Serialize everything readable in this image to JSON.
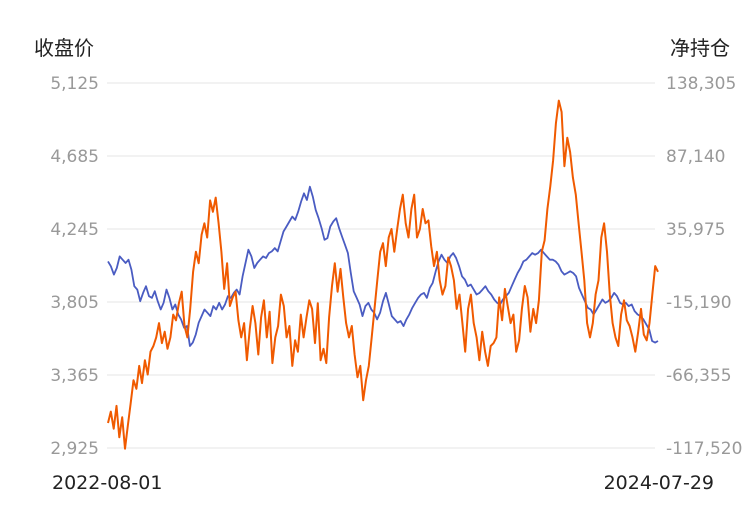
{
  "chart_data": {
    "type": "line",
    "left_axis": {
      "title": "收盘价",
      "ticks": [
        "5,125",
        "4,685",
        "4,245",
        "3,805",
        "3,365",
        "2,925"
      ],
      "range": [
        2925,
        5125
      ]
    },
    "right_axis": {
      "title": "净持仓",
      "ticks": [
        "138,305",
        "87,140",
        "35,975",
        "-15,190",
        "-66,355",
        "-117,520"
      ],
      "range": [
        -117520,
        138305
      ]
    },
    "x_labels": {
      "start": "2022-08-01",
      "end": "2024-07-29"
    },
    "grid": true,
    "series": [
      {
        "key": "close",
        "axis": "left",
        "color": "#4a5cc2",
        "values": [
          4050,
          4020,
          3970,
          4010,
          4080,
          4060,
          4040,
          4060,
          4000,
          3900,
          3880,
          3810,
          3860,
          3900,
          3840,
          3830,
          3870,
          3810,
          3760,
          3800,
          3880,
          3830,
          3760,
          3790,
          3730,
          3700,
          3650,
          3660,
          3540,
          3560,
          3610,
          3680,
          3720,
          3760,
          3740,
          3720,
          3780,
          3760,
          3800,
          3760,
          3790,
          3840,
          3830,
          3860,
          3880,
          3850,
          3960,
          4040,
          4120,
          4080,
          4010,
          4040,
          4060,
          4080,
          4070,
          4100,
          4110,
          4130,
          4110,
          4170,
          4230,
          4260,
          4290,
          4320,
          4300,
          4350,
          4410,
          4460,
          4420,
          4500,
          4440,
          4360,
          4310,
          4250,
          4180,
          4190,
          4260,
          4290,
          4310,
          4250,
          4200,
          4150,
          4100,
          3980,
          3870,
          3830,
          3790,
          3720,
          3780,
          3800,
          3760,
          3740,
          3700,
          3740,
          3810,
          3860,
          3790,
          3720,
          3700,
          3680,
          3690,
          3660,
          3700,
          3730,
          3770,
          3800,
          3830,
          3850,
          3860,
          3830,
          3890,
          3920,
          3990,
          4050,
          4090,
          4060,
          4040,
          4080,
          4100,
          4070,
          4020,
          3960,
          3940,
          3900,
          3910,
          3880,
          3850,
          3860,
          3880,
          3900,
          3870,
          3850,
          3820,
          3800,
          3790,
          3820,
          3840,
          3860,
          3900,
          3940,
          3980,
          4010,
          4050,
          4060,
          4080,
          4100,
          4090,
          4100,
          4120,
          4100,
          4080,
          4060,
          4060,
          4050,
          4030,
          3990,
          3970,
          3980,
          3990,
          3980,
          3960,
          3890,
          3850,
          3810,
          3770,
          3760,
          3730,
          3760,
          3790,
          3820,
          3800,
          3810,
          3830,
          3860,
          3840,
          3800,
          3790,
          3800,
          3780,
          3790,
          3750,
          3730,
          3720,
          3700,
          3670,
          3640,
          3570,
          3560,
          3570
        ]
      },
      {
        "key": "net_position",
        "axis": "right",
        "color": "#f05a00",
        "values": [
          -100000,
          -92000,
          -104000,
          -88000,
          -110000,
          -96000,
          -118000,
          -102000,
          -86000,
          -70000,
          -76000,
          -60000,
          -72000,
          -56000,
          -66000,
          -50000,
          -46000,
          -40000,
          -30000,
          -44000,
          -36000,
          -48000,
          -40000,
          -24000,
          -28000,
          -16000,
          -8000,
          -32000,
          -40000,
          -20000,
          6000,
          20000,
          12000,
          32000,
          40000,
          30000,
          56000,
          48000,
          58000,
          40000,
          20000,
          -6000,
          12000,
          -18000,
          -12000,
          -8000,
          -28000,
          -40000,
          -30000,
          -56000,
          -34000,
          -18000,
          -30000,
          -52000,
          -26000,
          -14000,
          -40000,
          -22000,
          -58000,
          -40000,
          -32000,
          -10000,
          -18000,
          -40000,
          -32000,
          -60000,
          -42000,
          -50000,
          -24000,
          -40000,
          -26000,
          -14000,
          -20000,
          -44000,
          -16000,
          -56000,
          -48000,
          -58000,
          -26000,
          -4000,
          12000,
          -8000,
          8000,
          -12000,
          -30000,
          -40000,
          -32000,
          -52000,
          -68000,
          -60000,
          -84000,
          -70000,
          -60000,
          -40000,
          -20000,
          0,
          20000,
          26000,
          10000,
          30000,
          36000,
          20000,
          36000,
          50000,
          60000,
          40000,
          30000,
          50000,
          60000,
          30000,
          36000,
          50000,
          40000,
          42000,
          24000,
          10000,
          20000,
          0,
          -10000,
          -4000,
          16000,
          10000,
          0,
          -20000,
          -10000,
          -30000,
          -50000,
          -20000,
          -10000,
          -30000,
          -40000,
          -56000,
          -36000,
          -50000,
          -60000,
          -46000,
          -44000,
          -40000,
          -12000,
          -28000,
          -6000,
          -18000,
          -30000,
          -24000,
          -50000,
          -42000,
          -20000,
          -4000,
          -12000,
          -36000,
          -20000,
          -30000,
          -14000,
          20000,
          28000,
          50000,
          66000,
          84000,
          110000,
          126000,
          118000,
          80000,
          100000,
          90000,
          72000,
          60000,
          40000,
          20000,
          0,
          -30000,
          -40000,
          -30000,
          -10000,
          0,
          30000,
          40000,
          20000,
          -10000,
          -30000,
          -40000,
          -46000,
          -24000,
          -14000,
          -28000,
          -32000,
          -40000,
          -50000,
          -36000,
          -20000,
          -38000,
          -42000,
          -30000,
          -10000,
          10000,
          6000
        ]
      }
    ]
  }
}
